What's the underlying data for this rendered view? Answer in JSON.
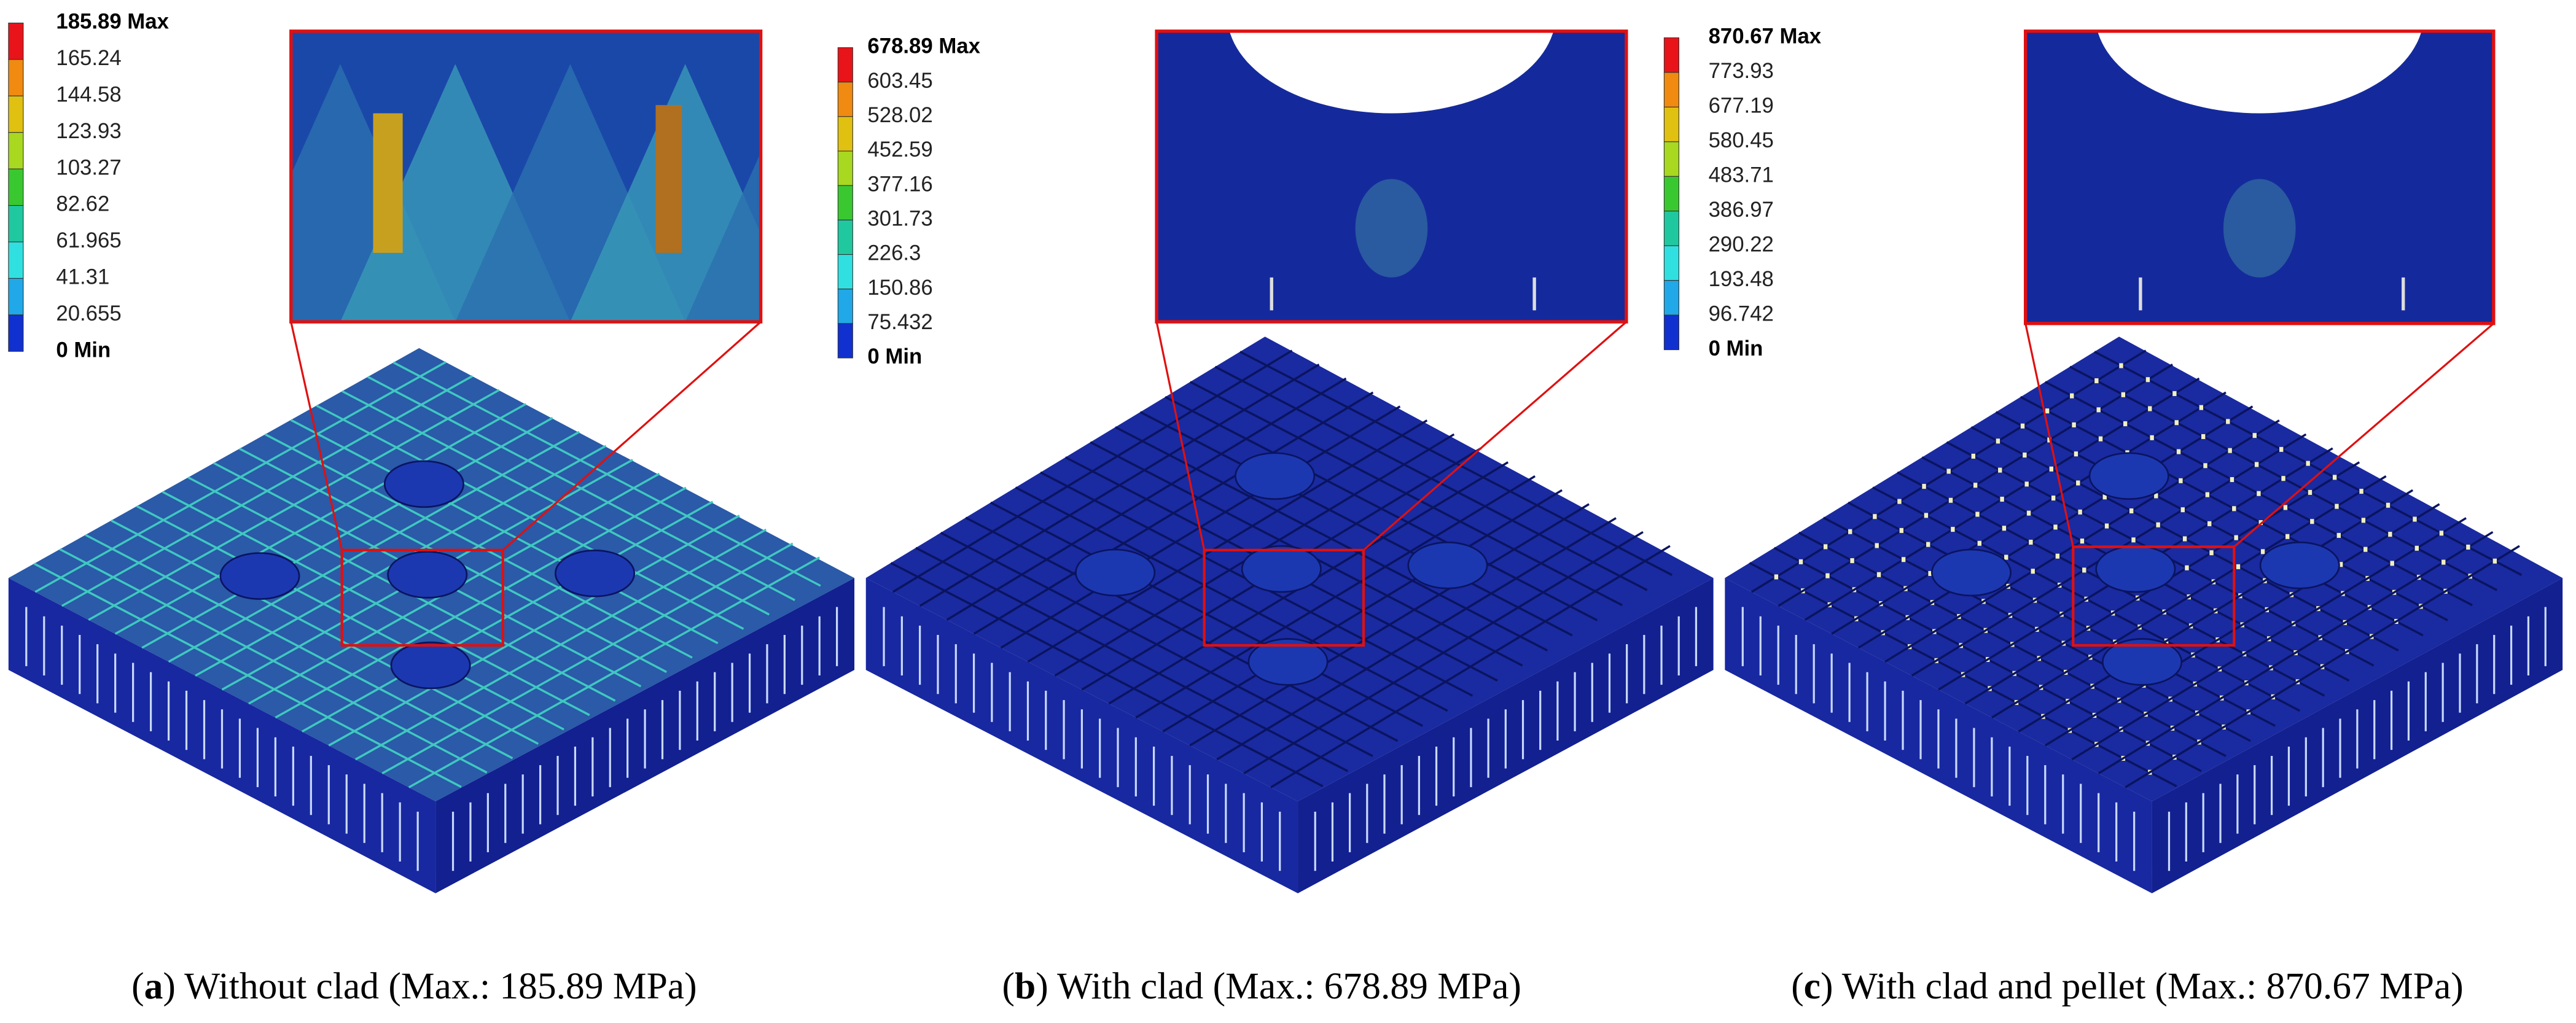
{
  "panels": [
    {
      "legend": [
        "185.89 Max",
        "165.24",
        "144.58",
        "123.93",
        "103.27",
        "82.62",
        "61.965",
        "41.31",
        "20.655",
        "0 Min"
      ],
      "caption": {
        "open": "(",
        "label": "a",
        "rest": ") Without clad (Max.: 185.89 MPa)"
      }
    },
    {
      "legend": [
        "678.89 Max",
        "603.45",
        "528.02",
        "452.59",
        "377.16",
        "301.73",
        "226.3",
        "150.86",
        "75.432",
        "0 Min"
      ],
      "caption": {
        "open": "(",
        "label": "b",
        "rest": ") With clad (Max.: 678.89 MPa)"
      }
    },
    {
      "legend": [
        "870.67 Max",
        "773.93",
        "677.19",
        "580.45",
        "483.71",
        "386.97",
        "290.22",
        "193.48",
        "96.742",
        "0 Min"
      ],
      "caption": {
        "open": "(",
        "label": "c",
        "rest": ") With clad and pellet (Max.: 870.67 MPa)"
      }
    }
  ]
}
